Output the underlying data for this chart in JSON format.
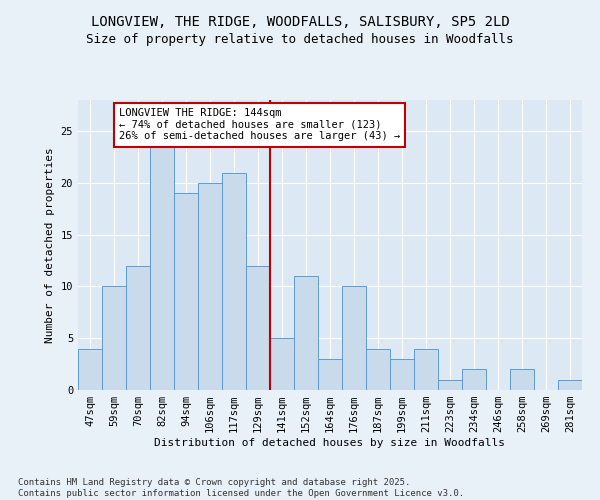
{
  "title1": "LONGVIEW, THE RIDGE, WOODFALLS, SALISBURY, SP5 2LD",
  "title2": "Size of property relative to detached houses in Woodfalls",
  "xlabel": "Distribution of detached houses by size in Woodfalls",
  "ylabel": "Number of detached properties",
  "footnote": "Contains HM Land Registry data © Crown copyright and database right 2025.\nContains public sector information licensed under the Open Government Licence v3.0.",
  "categories": [
    "47sqm",
    "59sqm",
    "70sqm",
    "82sqm",
    "94sqm",
    "106sqm",
    "117sqm",
    "129sqm",
    "141sqm",
    "152sqm",
    "164sqm",
    "176sqm",
    "187sqm",
    "199sqm",
    "211sqm",
    "223sqm",
    "234sqm",
    "246sqm",
    "258sqm",
    "269sqm",
    "281sqm"
  ],
  "values": [
    4,
    10,
    12,
    25,
    19,
    20,
    21,
    12,
    5,
    11,
    3,
    10,
    4,
    3,
    4,
    1,
    2,
    0,
    2,
    0,
    1
  ],
  "bar_color": "#c9daea",
  "bar_edge_color": "#5b9bd5",
  "vline_x_index": 8,
  "vline_color": "#c00000",
  "annotation_text": "LONGVIEW THE RIDGE: 144sqm\n← 74% of detached houses are smaller (123)\n26% of semi-detached houses are larger (43) →",
  "annotation_box_color": "#c00000",
  "ylim": [
    0,
    28
  ],
  "yticks": [
    0,
    5,
    10,
    15,
    20,
    25
  ],
  "bg_color": "#dce9f5",
  "fig_bg_color": "#e8f0f8",
  "title_fontsize": 10,
  "subtitle_fontsize": 9,
  "axis_label_fontsize": 8,
  "tick_fontsize": 7.5,
  "annotation_fontsize": 7.5,
  "footnote_fontsize": 6.5
}
